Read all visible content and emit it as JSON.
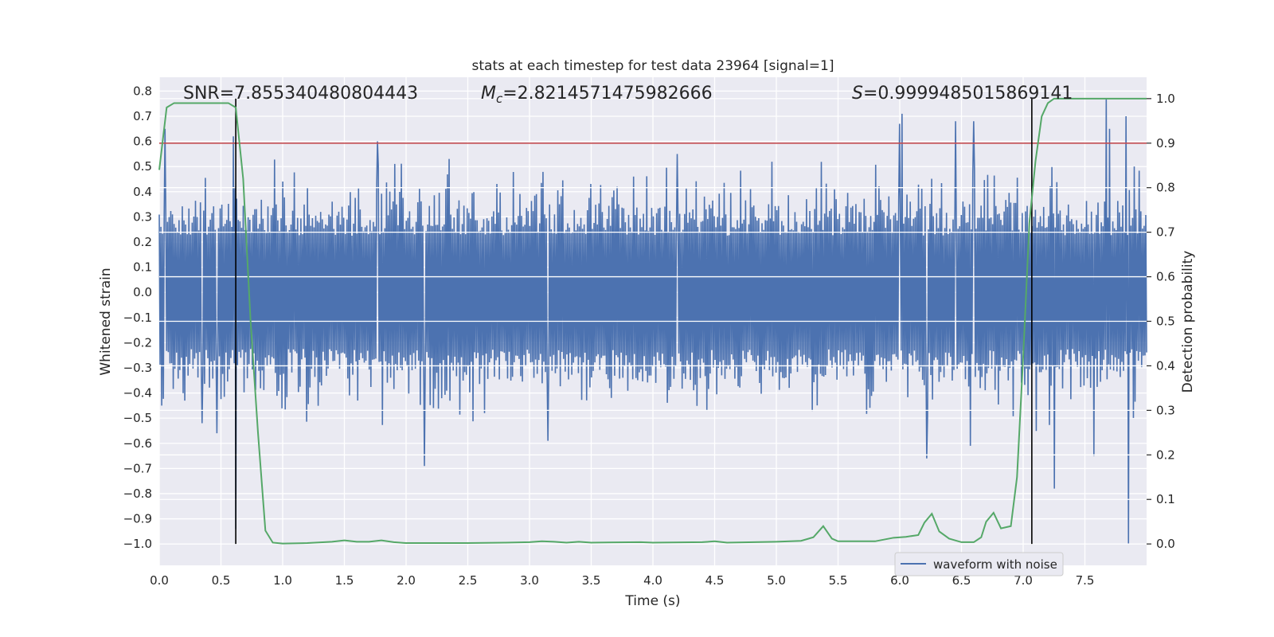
{
  "chart_data": {
    "type": "line",
    "title": "stats at each timestep for test data 23964 [signal=1]",
    "xlabel": "Time (s)",
    "ylabel": "Whitened strain",
    "y2label": "Detection probability",
    "xlim": [
      0.0,
      8.0
    ],
    "ylim": [
      -1.085,
      0.855
    ],
    "y2lim": [
      -0.048,
      1.048
    ],
    "xticks": [
      "0.0",
      "0.5",
      "1.0",
      "1.5",
      "2.0",
      "2.5",
      "3.0",
      "3.5",
      "4.0",
      "4.5",
      "5.0",
      "5.5",
      "6.0",
      "6.5",
      "7.0",
      "7.5"
    ],
    "yticks": [
      "0.8",
      "0.7",
      "0.6",
      "0.5",
      "0.4",
      "0.3",
      "0.2",
      "0.1",
      "0.0",
      "−0.1",
      "−0.2",
      "−0.3",
      "−0.4",
      "−0.5",
      "−0.6",
      "−0.7",
      "−0.8",
      "−0.9",
      "−1.0"
    ],
    "y2ticks": [
      "1.0",
      "0.9",
      "0.8",
      "0.7",
      "0.6",
      "0.5",
      "0.4",
      "0.3",
      "0.2",
      "0.1",
      "0.0"
    ],
    "annotations": {
      "snr": "SNR=7.855340480804443",
      "mc_symbol": "M",
      "mc_sub": "c",
      "mc_value": "=2.8214571475982666",
      "s_symbol": "S",
      "s_value": "=0.9999485015869141"
    },
    "threshold_line": {
      "y": 0.9,
      "axis": "right",
      "color": "#c44e52"
    },
    "vertical_lines": {
      "x": [
        0.62,
        7.07
      ],
      "axis": "right",
      "ymin": 0.0,
      "ymax": 1.0,
      "color": "#000000"
    },
    "waveform": {
      "name": "waveform with noise",
      "color": "#4c72b0",
      "duration": 8.0,
      "samples": 1200,
      "base_amplitude": 0.3,
      "seed": 23964,
      "peaks": [
        {
          "x": 0.02,
          "y": -0.45
        },
        {
          "x": 0.05,
          "y": 0.65
        },
        {
          "x": 0.35,
          "y": -0.52
        },
        {
          "x": 0.47,
          "y": -0.56
        },
        {
          "x": 0.6,
          "y": 0.62
        },
        {
          "x": 0.62,
          "y": -0.94
        },
        {
          "x": 1.77,
          "y": 0.6
        },
        {
          "x": 2.15,
          "y": -0.69
        },
        {
          "x": 2.35,
          "y": 0.53
        },
        {
          "x": 3.15,
          "y": -0.59
        },
        {
          "x": 4.2,
          "y": 0.55
        },
        {
          "x": 6.0,
          "y": 0.67
        },
        {
          "x": 6.02,
          "y": 0.71
        },
        {
          "x": 6.22,
          "y": -0.66
        },
        {
          "x": 6.45,
          "y": 0.68
        },
        {
          "x": 6.57,
          "y": -0.61
        },
        {
          "x": 6.6,
          "y": 0.68
        },
        {
          "x": 7.25,
          "y": -0.78
        },
        {
          "x": 7.57,
          "y": -0.65
        },
        {
          "x": 7.67,
          "y": 0.77
        },
        {
          "x": 7.7,
          "y": 0.65
        },
        {
          "x": 7.83,
          "y": 0.7
        },
        {
          "x": 7.85,
          "y": -1.0
        },
        {
          "x": 7.9,
          "y": 0.5
        }
      ]
    },
    "probability": {
      "name": "detection probability",
      "color": "#55a868",
      "x": [
        0.0,
        0.06,
        0.12,
        0.2,
        0.3,
        0.4,
        0.5,
        0.56,
        0.62,
        0.68,
        0.74,
        0.8,
        0.86,
        0.92,
        1.0,
        1.2,
        1.4,
        1.5,
        1.6,
        1.7,
        1.8,
        1.9,
        2.0,
        2.5,
        2.8,
        3.0,
        3.1,
        3.2,
        3.3,
        3.4,
        3.5,
        3.9,
        4.0,
        4.4,
        4.5,
        4.6,
        5.0,
        5.2,
        5.3,
        5.38,
        5.45,
        5.5,
        5.6,
        5.8,
        5.95,
        6.05,
        6.15,
        6.2,
        6.26,
        6.32,
        6.4,
        6.5,
        6.6,
        6.66,
        6.7,
        6.76,
        6.82,
        6.9,
        6.95,
        7.0,
        7.05,
        7.1,
        7.15,
        7.2,
        7.25,
        7.3,
        7.4,
        7.6,
        7.8,
        8.0
      ],
      "y": [
        0.84,
        0.98,
        0.99,
        0.99,
        0.99,
        0.99,
        0.99,
        0.99,
        0.98,
        0.82,
        0.5,
        0.25,
        0.03,
        0.003,
        0.001,
        0.002,
        0.005,
        0.008,
        0.005,
        0.005,
        0.008,
        0.004,
        0.002,
        0.002,
        0.003,
        0.004,
        0.006,
        0.005,
        0.003,
        0.005,
        0.003,
        0.004,
        0.003,
        0.004,
        0.006,
        0.003,
        0.005,
        0.007,
        0.015,
        0.04,
        0.012,
        0.006,
        0.006,
        0.006,
        0.014,
        0.016,
        0.02,
        0.048,
        0.068,
        0.028,
        0.012,
        0.004,
        0.004,
        0.015,
        0.05,
        0.07,
        0.035,
        0.04,
        0.15,
        0.42,
        0.72,
        0.86,
        0.96,
        0.99,
        1.0,
        1.0,
        1.0,
        1.0,
        1.0,
        1.0
      ]
    },
    "legend": {
      "position": "bottom-right",
      "entries": [
        "waveform with noise"
      ]
    }
  }
}
